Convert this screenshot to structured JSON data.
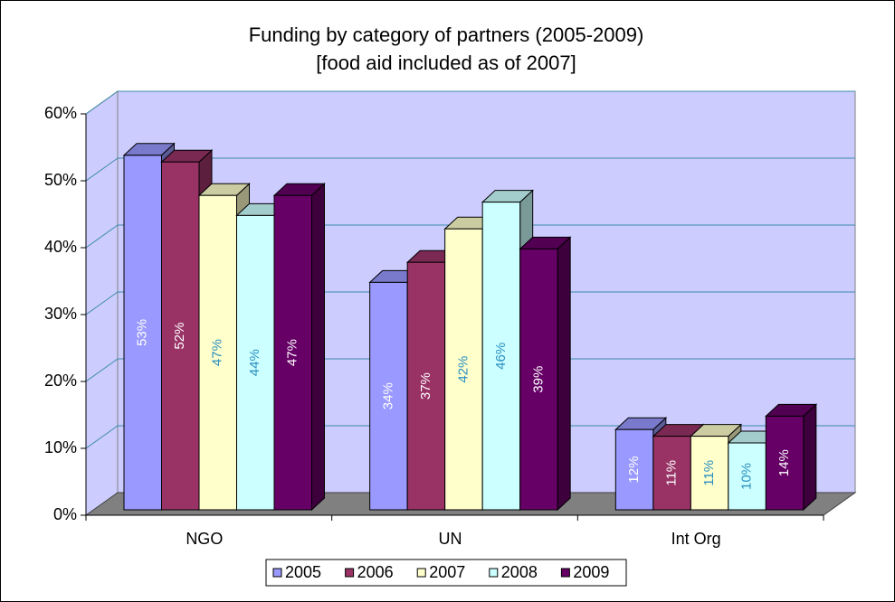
{
  "chart_data": {
    "type": "bar3d",
    "title": "Funding by category of partners (2005-2009)",
    "subtitle": "[food aid included as of 2007]",
    "categories": [
      "NGO",
      "UN",
      "Int Org"
    ],
    "series": [
      {
        "name": "2005",
        "color": "#9999ff",
        "label_color": "#ffffff",
        "values": [
          53,
          34,
          12
        ],
        "value_labels": [
          "53%",
          "34%",
          "12%"
        ]
      },
      {
        "name": "2006",
        "color": "#993366",
        "label_color": "#ffffff",
        "values": [
          52,
          37,
          11
        ],
        "value_labels": [
          "52%",
          "37%",
          "11%"
        ]
      },
      {
        "name": "2007",
        "color": "#ffffcc",
        "label_color": "#2a8fc0",
        "values": [
          47,
          42,
          11
        ],
        "value_labels": [
          "47%",
          "42%",
          "11%"
        ]
      },
      {
        "name": "2008",
        "color": "#ccffff",
        "label_color": "#2a8fc0",
        "values": [
          44,
          46,
          10
        ],
        "value_labels": [
          "44%",
          "46%",
          "10%"
        ]
      },
      {
        "name": "2009",
        "color": "#660066",
        "label_color": "#ffffff",
        "values": [
          47,
          39,
          14
        ],
        "value_labels": [
          "47%",
          "39%",
          "14%"
        ]
      }
    ],
    "ylim": [
      0,
      60
    ],
    "yticks": [
      {
        "value": 0,
        "label": "0%"
      },
      {
        "value": 10,
        "label": "10%"
      },
      {
        "value": 20,
        "label": "20%"
      },
      {
        "value": 30,
        "label": "30%"
      },
      {
        "value": 40,
        "label": "40%"
      },
      {
        "value": 50,
        "label": "50%"
      },
      {
        "value": 60,
        "label": "60%"
      }
    ],
    "grid": true,
    "wall_color": "#ccccff",
    "floor_color": "#808080",
    "legend": "bottom"
  }
}
